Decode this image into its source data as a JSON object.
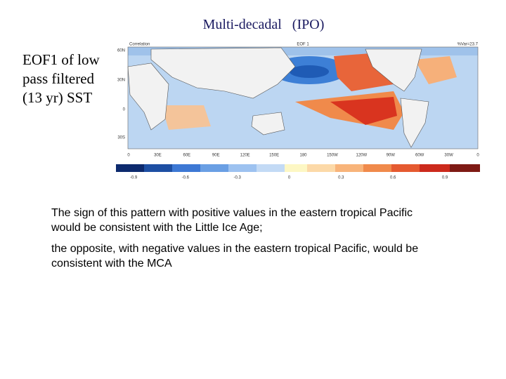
{
  "title": "Multi-decadal   (IPO)",
  "side_text": "EOF1 of low pass filtered (13 yr) SST",
  "map": {
    "header_left": "Correlation",
    "header_center": "EOF 1",
    "header_right": "%Var=23.7",
    "lat_labels": [
      "60N",
      "30N",
      "0",
      "30S"
    ],
    "lon_labels": [
      "0",
      "30E",
      "60E",
      "90E",
      "120E",
      "150E",
      "180",
      "150W",
      "120W",
      "90W",
      "60W",
      "30W",
      "0"
    ]
  },
  "colorbar": {
    "labels": [
      "-0.9",
      "-0.6",
      "-0.3",
      "0",
      "0.3",
      "0.6",
      "0.9"
    ]
  },
  "paragraphs": [
    "The sign of this pattern with positive values in the eastern tropical Pacific would be consistent with the Little Ice Age;",
    "the opposite, with negative values in the eastern tropical Pacific, would be consistent with the MCA"
  ]
}
